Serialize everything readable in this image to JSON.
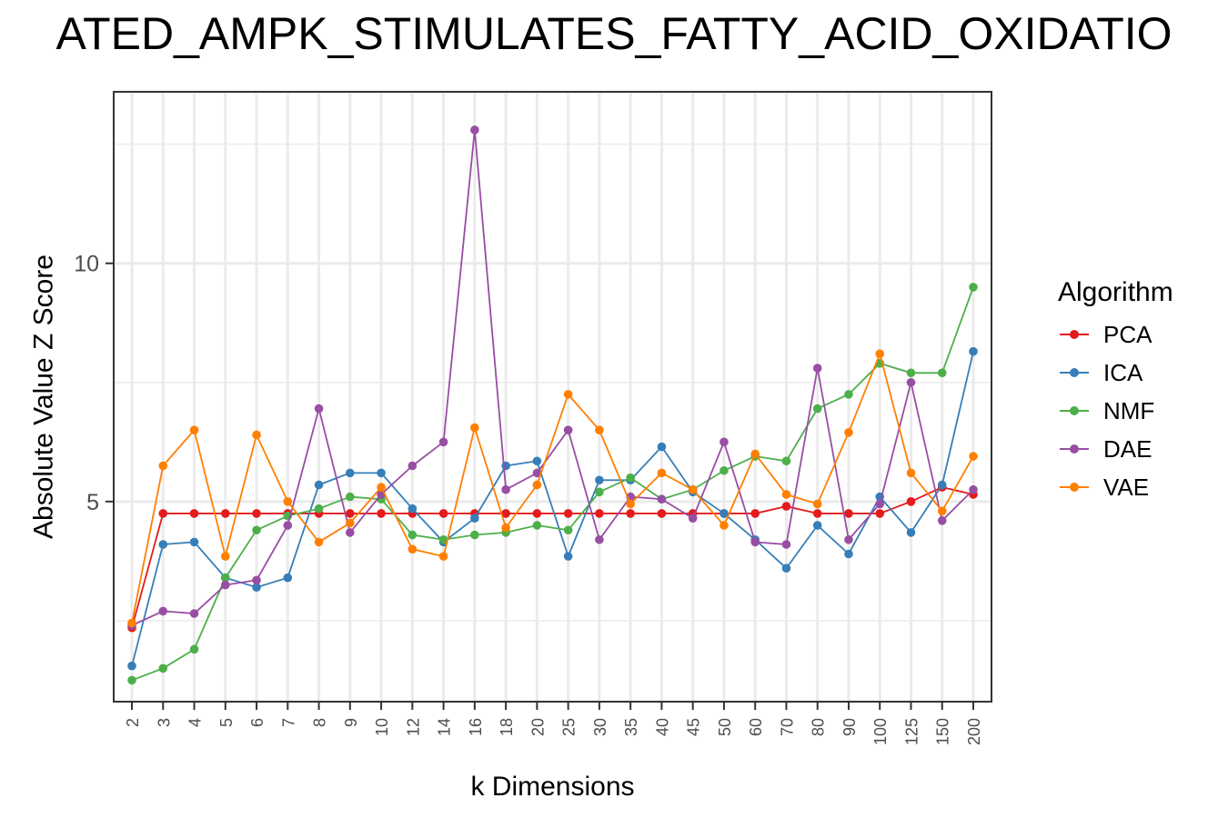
{
  "chart_data": {
    "type": "line",
    "title": "ATED_AMPK_STIMULATES_FATTY_ACID_OXIDATIO",
    "xlabel": "k Dimensions",
    "ylabel": "Absolute Value Z Score",
    "categories": [
      "2",
      "3",
      "4",
      "5",
      "6",
      "7",
      "8",
      "9",
      "10",
      "12",
      "14",
      "16",
      "18",
      "20",
      "25",
      "30",
      "35",
      "40",
      "45",
      "50",
      "60",
      "70",
      "80",
      "90",
      "100",
      "125",
      "150",
      "200"
    ],
    "y_ticks": [
      5,
      10
    ],
    "ylim": [
      0.8,
      13.6
    ],
    "grid": true,
    "legend": {
      "title": "Algorithm",
      "placement": "right"
    },
    "series": [
      {
        "name": "PCA",
        "color": "#e41a1c",
        "values": [
          2.35,
          4.75,
          4.75,
          4.75,
          4.75,
          4.75,
          4.75,
          4.75,
          4.75,
          4.75,
          4.75,
          4.75,
          4.75,
          4.75,
          4.75,
          4.75,
          4.75,
          4.75,
          4.75,
          4.75,
          4.75,
          4.9,
          4.75,
          4.75,
          4.75,
          5.0,
          5.3,
          5.15
        ]
      },
      {
        "name": "ICA",
        "color": "#377eb8",
        "values": [
          1.55,
          4.1,
          4.15,
          3.4,
          3.2,
          3.4,
          5.35,
          5.6,
          5.6,
          4.85,
          4.15,
          4.65,
          5.75,
          5.85,
          3.85,
          5.45,
          5.45,
          6.15,
          5.2,
          4.75,
          4.2,
          3.6,
          4.5,
          3.9,
          5.1,
          4.35,
          5.35,
          8.15
        ]
      },
      {
        "name": "NMF",
        "color": "#4daf4a",
        "values": [
          1.25,
          1.5,
          1.9,
          3.4,
          4.4,
          4.7,
          4.85,
          5.1,
          5.05,
          4.3,
          4.2,
          4.3,
          4.35,
          4.5,
          4.4,
          5.2,
          5.5,
          5.05,
          5.25,
          5.65,
          5.95,
          5.85,
          6.95,
          7.25,
          7.9,
          7.7,
          7.7,
          9.5
        ]
      },
      {
        "name": "DAE",
        "color": "#984ea3",
        "values": [
          2.4,
          2.7,
          2.65,
          3.25,
          3.35,
          4.5,
          6.95,
          4.35,
          5.15,
          5.75,
          6.25,
          12.8,
          5.25,
          5.6,
          6.5,
          4.2,
          5.1,
          5.05,
          4.65,
          6.25,
          4.15,
          4.1,
          7.8,
          4.2,
          4.95,
          7.5,
          4.6,
          5.25
        ]
      },
      {
        "name": "VAE",
        "color": "#ff7f00",
        "values": [
          2.45,
          5.75,
          6.5,
          3.85,
          6.4,
          5.0,
          4.15,
          4.55,
          5.3,
          4.0,
          3.85,
          6.55,
          4.45,
          5.35,
          7.25,
          6.5,
          4.95,
          5.6,
          5.25,
          4.5,
          6.0,
          5.15,
          4.95,
          6.45,
          8.1,
          5.6,
          4.8,
          5.95
        ]
      }
    ]
  }
}
